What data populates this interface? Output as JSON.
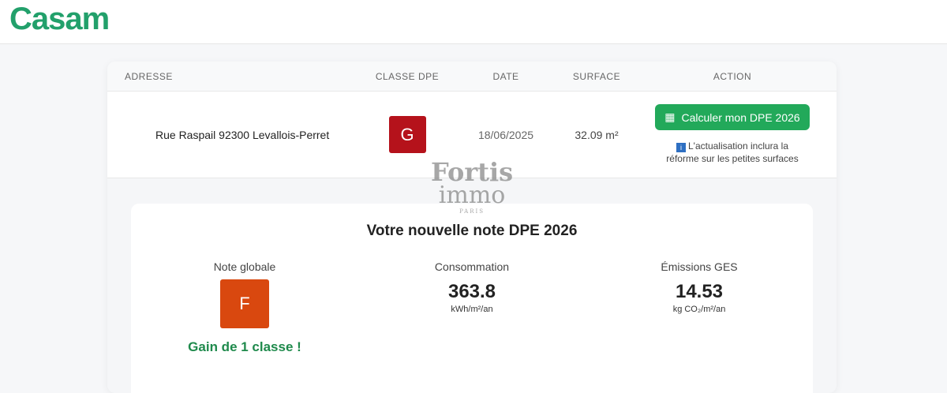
{
  "header": {
    "logo": "Casam"
  },
  "table": {
    "columns": [
      "ADRESSE",
      "CLASSE DPE",
      "DATE",
      "SURFACE",
      "ACTION"
    ],
    "row": {
      "address": "Rue Raspail 92300 Levallois-Perret",
      "class": "G",
      "class_color": "#b5121b",
      "date": "18/06/2025",
      "surface": "32.09 m²",
      "button": "Calculer mon DPE 2026",
      "button_icon": "calculator-icon",
      "note_line1": "L'actualisation inclura la",
      "note_line2": "réforme sur les petites surfaces",
      "note_icon": "i"
    }
  },
  "watermark": {
    "line1": "Fortis",
    "line2": "immo",
    "line3": "PARIS"
  },
  "result": {
    "title": "Votre nouvelle note DPE 2026",
    "global_label": "Note globale",
    "global_class": "F",
    "global_color": "#d9480f",
    "gain": "Gain de 1 classe !",
    "consumption_label": "Consommation",
    "consumption_value": "363.8",
    "consumption_unit": "kWh/m²/an",
    "ges_label": "Émissions GES",
    "ges_value": "14.53",
    "ges_unit": "kg CO₂/m²/an"
  }
}
